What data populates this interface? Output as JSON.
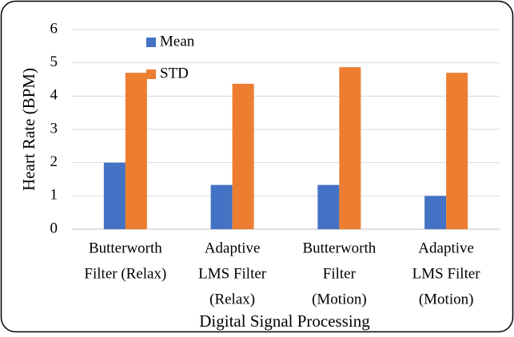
{
  "chart_data": {
    "type": "bar",
    "categories": [
      [
        "Butterworth",
        "Filter (Relax)"
      ],
      [
        "Adaptive",
        "LMS Filter",
        "(Relax)"
      ],
      [
        "Butterworth",
        "Filter",
        "(Motion)"
      ],
      [
        "Adaptive",
        "LMS Filter",
        "(Motion)"
      ]
    ],
    "series": [
      {
        "name": "Mean",
        "color": "#4472c4",
        "values": [
          2.0,
          1.33,
          1.33,
          1.0
        ]
      },
      {
        "name": "STD",
        "color": "#ed7d31",
        "values": [
          4.7,
          4.37,
          4.87,
          4.7
        ]
      }
    ],
    "xlabel": "Digital Signal Processing",
    "ylabel": "Heart Rate (BPM)",
    "ylim": [
      0,
      6
    ],
    "yticks": [
      0,
      1,
      2,
      3,
      4,
      5,
      6
    ],
    "grid": true,
    "legend": "upper left"
  }
}
